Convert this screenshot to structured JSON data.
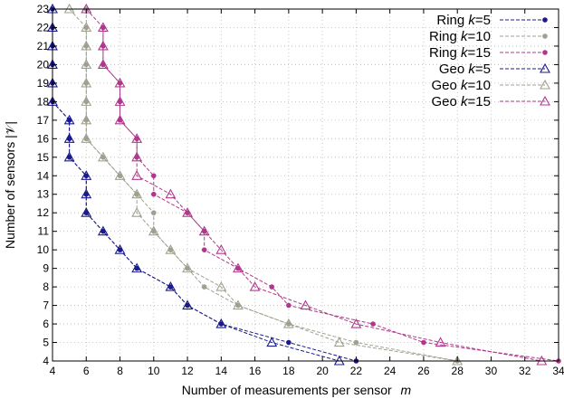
{
  "chart_data": {
    "type": "line",
    "xlabel": "Number of measurements per sensor",
    "xlabel_var": "m",
    "ylabel": "Number of sensors |𝒱|",
    "xlim": [
      4,
      34
    ],
    "ylim": [
      4,
      23
    ],
    "xticks": [
      4,
      6,
      8,
      10,
      12,
      14,
      16,
      18,
      20,
      22,
      24,
      26,
      28,
      30,
      32,
      34
    ],
    "yticks": [
      4,
      5,
      6,
      7,
      8,
      9,
      10,
      11,
      12,
      13,
      14,
      15,
      16,
      17,
      18,
      19,
      20,
      21,
      22,
      23
    ],
    "grid": true,
    "legend_position": "top-right",
    "series": [
      {
        "name": "Ring k=5",
        "legend_text": "Ring",
        "legend_k": "=5",
        "color": "#1a1a8c",
        "marker": "circle",
        "points": [
          [
            4,
            23
          ],
          [
            4,
            22
          ],
          [
            4,
            21
          ],
          [
            4,
            20
          ],
          [
            4,
            19
          ],
          [
            4,
            18
          ],
          [
            5,
            17
          ],
          [
            5,
            16
          ],
          [
            5,
            15
          ],
          [
            6,
            14
          ],
          [
            6,
            13
          ],
          [
            6,
            12
          ],
          [
            7,
            11
          ],
          [
            8,
            10
          ],
          [
            9,
            9
          ],
          [
            11,
            8
          ],
          [
            12,
            7
          ],
          [
            14,
            6
          ],
          [
            18,
            5
          ],
          [
            22,
            4
          ]
        ]
      },
      {
        "name": "Ring k=10",
        "legend_text": "Ring",
        "legend_k": "=10",
        "color": "#a0a090",
        "marker": "circle",
        "points": [
          [
            6,
            23
          ],
          [
            6,
            22
          ],
          [
            6,
            21
          ],
          [
            6,
            20
          ],
          [
            6,
            19
          ],
          [
            6,
            18
          ],
          [
            6,
            17
          ],
          [
            6,
            16
          ],
          [
            7,
            15
          ],
          [
            8,
            14
          ],
          [
            9,
            13
          ],
          [
            10,
            12
          ],
          [
            10,
            11
          ],
          [
            11,
            10
          ],
          [
            12,
            9
          ],
          [
            13,
            8
          ],
          [
            15,
            7
          ],
          [
            18,
            6
          ],
          [
            22,
            5
          ],
          [
            28,
            4
          ]
        ]
      },
      {
        "name": "Ring k=15",
        "legend_text": "Ring",
        "legend_k": "=15",
        "color": "#b0388c",
        "marker": "circle",
        "points": [
          [
            7,
            22
          ],
          [
            7,
            21
          ],
          [
            7,
            20
          ],
          [
            8,
            19
          ],
          [
            8,
            18
          ],
          [
            8,
            17
          ],
          [
            9,
            16
          ],
          [
            9,
            15
          ],
          [
            10,
            14
          ],
          [
            10,
            13
          ],
          [
            12,
            12
          ],
          [
            13,
            11
          ],
          [
            13,
            10
          ],
          [
            15,
            9
          ],
          [
            17,
            8
          ],
          [
            18,
            7
          ],
          [
            23,
            6
          ],
          [
            26,
            5
          ],
          [
            34,
            4
          ]
        ]
      },
      {
        "name": "Geo k=5",
        "legend_text": "Geo",
        "legend_k": "=5",
        "color": "#1a1a8c",
        "marker": "triangle",
        "points": [
          [
            4,
            23
          ],
          [
            4,
            22
          ],
          [
            4,
            21
          ],
          [
            4,
            20
          ],
          [
            4,
            19
          ],
          [
            4,
            18
          ],
          [
            5,
            17
          ],
          [
            5,
            16
          ],
          [
            5,
            15
          ],
          [
            6,
            14
          ],
          [
            6,
            13
          ],
          [
            6,
            12
          ],
          [
            7,
            11
          ],
          [
            8,
            10
          ],
          [
            9,
            9
          ],
          [
            11,
            8
          ],
          [
            12,
            7
          ],
          [
            14,
            6
          ],
          [
            17,
            5
          ],
          [
            21,
            4
          ]
        ]
      },
      {
        "name": "Geo k=10",
        "legend_text": "Geo",
        "legend_k": "=10",
        "color": "#a0a090",
        "marker": "triangle",
        "points": [
          [
            5,
            23
          ],
          [
            6,
            22
          ],
          [
            6,
            21
          ],
          [
            6,
            20
          ],
          [
            6,
            19
          ],
          [
            6,
            18
          ],
          [
            6,
            17
          ],
          [
            6,
            16
          ],
          [
            7,
            15
          ],
          [
            8,
            14
          ],
          [
            9,
            13
          ],
          [
            9,
            12
          ],
          [
            10,
            11
          ],
          [
            11,
            10
          ],
          [
            12,
            9
          ],
          [
            14,
            8
          ],
          [
            15,
            7
          ],
          [
            18,
            6
          ],
          [
            21,
            5
          ],
          [
            28,
            4
          ]
        ]
      },
      {
        "name": "Geo k=15",
        "legend_text": "Geo",
        "legend_k": "=15",
        "color": "#b0388c",
        "marker": "triangle",
        "points": [
          [
            6,
            23
          ],
          [
            7,
            22
          ],
          [
            7,
            21
          ],
          [
            7,
            20
          ],
          [
            8,
            19
          ],
          [
            8,
            18
          ],
          [
            8,
            17
          ],
          [
            9,
            16
          ],
          [
            9,
            15
          ],
          [
            9,
            14
          ],
          [
            11,
            13
          ],
          [
            12,
            12
          ],
          [
            13,
            11
          ],
          [
            14,
            10
          ],
          [
            15,
            9
          ],
          [
            16,
            8
          ],
          [
            19,
            7
          ],
          [
            22,
            6
          ],
          [
            27,
            5
          ],
          [
            33,
            4
          ]
        ]
      }
    ]
  }
}
